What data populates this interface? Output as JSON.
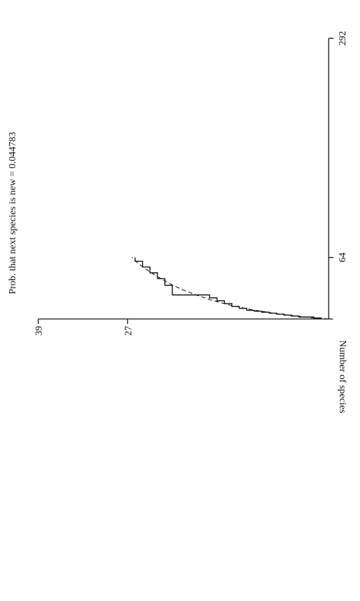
{
  "chart_data": {
    "type": "line",
    "title": "Prob. that next species is new = 0.044783",
    "ylabel": "Number of species",
    "xlabel": "",
    "xlim": [
      0,
      292
    ],
    "ylim": [
      0,
      39
    ],
    "x_ticks": [
      {
        "value": 64,
        "label": "64"
      },
      {
        "value": 292,
        "label": "292"
      }
    ],
    "y_ticks": [
      {
        "value": 27,
        "label": "27"
      },
      {
        "value": 39,
        "label": "39"
      }
    ],
    "rotation": "figure rotated 90 degrees counter-clockwise",
    "grid": false,
    "series": [
      {
        "style": "step",
        "color": "#111111",
        "x": [
          0,
          1,
          2,
          3,
          4,
          5,
          6,
          7,
          8,
          9,
          11,
          13,
          16,
          19,
          22,
          25,
          29,
          35,
          42,
          48,
          54,
          60,
          64
        ],
        "y": [
          1,
          2,
          4,
          5,
          6,
          7,
          8,
          9,
          10,
          11,
          12,
          13,
          14,
          15,
          16,
          21,
          21,
          22,
          23,
          24,
          25,
          26,
          26
        ]
      },
      {
        "style": "dashed",
        "color": "#111111",
        "x": [
          0,
          2,
          5,
          10,
          15,
          20,
          25,
          30,
          35,
          40,
          45,
          50,
          55,
          60,
          64
        ],
        "y": [
          0,
          3.2,
          6.6,
          10.6,
          13.6,
          15.9,
          17.8,
          19.5,
          20.9,
          22.1,
          23.2,
          24.2,
          25.1,
          25.9,
          26.4
        ]
      }
    ],
    "colors": {
      "axis": "#111111",
      "background": "#ffffff"
    }
  }
}
